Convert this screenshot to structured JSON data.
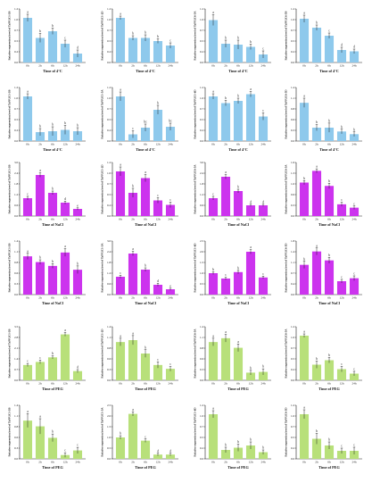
{
  "chart_data": [
    {
      "type": "bar",
      "row": 0,
      "col": 0,
      "color": "#8ec9ec",
      "ylabel": "Relative expression level of TaPP2C1-3B",
      "xlabel": "Time of 4°C",
      "categories": [
        "0h",
        "2h",
        "6h",
        "12h",
        "24h"
      ],
      "values": [
        1.0,
        0.55,
        0.7,
        0.42,
        0.2
      ],
      "errors": [
        0.08,
        0.1,
        0.07,
        0.08,
        0.08
      ],
      "letters": [
        "a",
        "b",
        "b",
        "c",
        "d"
      ]
    },
    {
      "type": "bar",
      "row": 0,
      "col": 1,
      "color": "#8ec9ec",
      "ylabel": "Relative expression level of TaPP2C1-2D",
      "xlabel": "Time of 4°C",
      "categories": [
        "0h",
        "2h",
        "6h",
        "12h",
        "24h"
      ],
      "values": [
        1.0,
        0.55,
        0.55,
        0.48,
        0.38
      ],
      "errors": [
        0.04,
        0.05,
        0.07,
        0.05,
        0.06
      ],
      "letters": [
        "a",
        "b",
        "b",
        "b",
        "c"
      ]
    },
    {
      "type": "bar",
      "row": 0,
      "col": 2,
      "color": "#8ec9ec",
      "ylabel": "Relative expression level of TaPP2C6-5A",
      "xlabel": "Time of 4°C",
      "categories": [
        "0h",
        "2h",
        "6h",
        "12h",
        "24h"
      ],
      "values": [
        0.95,
        0.42,
        0.4,
        0.35,
        0.18
      ],
      "errors": [
        0.12,
        0.08,
        0.1,
        0.06,
        0.08
      ],
      "letters": [
        "a",
        "b",
        "b",
        "b",
        "c"
      ]
    },
    {
      "type": "bar",
      "row": 0,
      "col": 3,
      "color": "#8ec9ec",
      "ylabel": "Relative expression level of TaPP2C6-5B",
      "xlabel": "Time of 4°C",
      "categories": [
        "0h",
        "2h",
        "6h",
        "12h",
        "24h"
      ],
      "values": [
        0.98,
        0.78,
        0.6,
        0.28,
        0.25
      ],
      "errors": [
        0.08,
        0.06,
        0.06,
        0.06,
        0.05
      ],
      "letters": [
        "a",
        "b",
        "c",
        "d",
        "d"
      ]
    },
    {
      "type": "bar",
      "row": 1,
      "col": 0,
      "color": "#8ec9ec",
      "ylabel": "Relative expression level of TaPP2C1-3B",
      "xlabel": "Time of 4°C",
      "categories": [
        "0h",
        "2h",
        "6h",
        "12h",
        "24h"
      ],
      "values": [
        1.0,
        0.2,
        0.22,
        0.25,
        0.22
      ],
      "errors": [
        0.06,
        0.08,
        0.1,
        0.1,
        0.08
      ],
      "letters": [
        "a",
        "b",
        "b",
        "b",
        "b"
      ]
    },
    {
      "type": "bar",
      "row": 1,
      "col": 1,
      "color": "#8ec9ec",
      "ylabel": "Relative expression level of TaPP2C1-5A",
      "xlabel": "Time of 4°C",
      "categories": [
        "0h",
        "2h",
        "6h",
        "12h",
        "24h"
      ],
      "values": [
        1.0,
        0.15,
        0.3,
        0.7,
        0.32
      ],
      "errors": [
        0.1,
        0.08,
        0.08,
        0.1,
        0.08
      ],
      "letters": [
        "a",
        "c",
        "bc",
        "b",
        "bc"
      ]
    },
    {
      "type": "bar",
      "row": 1,
      "col": 2,
      "color": "#8ec9ec",
      "ylabel": "Relative expression level of TaPP2C1-6D",
      "xlabel": "Time of 4°C",
      "categories": [
        "0h",
        "2h",
        "6h",
        "12h",
        "24h"
      ],
      "values": [
        1.0,
        0.85,
        0.9,
        1.05,
        0.55
      ],
      "errors": [
        0.06,
        0.06,
        0.06,
        0.06,
        0.08
      ],
      "letters": [
        "a",
        "b",
        "b",
        "a",
        "c"
      ]
    },
    {
      "type": "bar",
      "row": 1,
      "col": 3,
      "color": "#8ec9ec",
      "ylabel": "Relative expression level of TaPP2C6-5D",
      "xlabel": "Time of 4°C",
      "categories": [
        "0h",
        "2h",
        "6h",
        "12h",
        "24h"
      ],
      "values": [
        1.0,
        0.35,
        0.35,
        0.25,
        0.18
      ],
      "errors": [
        0.12,
        0.08,
        0.12,
        0.06,
        0.06
      ],
      "letters": [
        "a",
        "b",
        "b",
        "b",
        "b"
      ]
    },
    {
      "type": "bar",
      "row": 2,
      "col": 0,
      "color": "#cc33ee",
      "ylabel": "Relative expression level of TaPP2C1-3B",
      "xlabel": "Time of NaCl",
      "categories": [
        "0h",
        "2h",
        "6h",
        "12h",
        "24h"
      ],
      "values": [
        1.0,
        2.3,
        1.3,
        0.75,
        0.4
      ],
      "errors": [
        0.1,
        0.12,
        0.1,
        0.08,
        0.06
      ],
      "letters": [
        "c",
        "a",
        "b",
        "d",
        "e"
      ]
    },
    {
      "type": "bar",
      "row": 2,
      "col": 1,
      "color": "#cc33ee",
      "ylabel": "Relative expression level of TaPP2C1-2D",
      "xlabel": "Time of NaCl",
      "categories": [
        "0h",
        "2h",
        "6h",
        "12h",
        "24h"
      ],
      "values": [
        1.0,
        0.52,
        0.85,
        0.35,
        0.25
      ],
      "errors": [
        0.1,
        0.1,
        0.08,
        0.06,
        0.06
      ],
      "letters": [
        "a",
        "b",
        "a",
        "c",
        "c"
      ]
    },
    {
      "type": "bar",
      "row": 2,
      "col": 2,
      "color": "#cc33ee",
      "ylabel": "Relative expression level of TaPP2C6-5A",
      "xlabel": "Time of NaCl",
      "categories": [
        "0h",
        "2h",
        "6h",
        "12h",
        "24h"
      ],
      "values": [
        1.0,
        2.2,
        1.4,
        0.6,
        0.6
      ],
      "errors": [
        0.1,
        0.12,
        0.1,
        0.06,
        0.06
      ],
      "letters": [
        "c",
        "a",
        "b",
        "d",
        "d"
      ]
    },
    {
      "type": "bar",
      "row": 2,
      "col": 3,
      "color": "#cc33ee",
      "ylabel": "Relative expression level of TaPP2C6-5A",
      "xlabel": "Time of NaCl",
      "categories": [
        "0h",
        "2h",
        "6h",
        "12h",
        "24h"
      ],
      "values": [
        1.0,
        1.35,
        0.9,
        0.35,
        0.25
      ],
      "errors": [
        0.06,
        0.06,
        0.08,
        0.06,
        0.05
      ],
      "letters": [
        "b",
        "a",
        "b",
        "c",
        "c"
      ]
    },
    {
      "type": "bar",
      "row": 3,
      "col": 0,
      "color": "#cc33ee",
      "ylabel": "Relative expression level of TaPP2C1-3B",
      "xlabel": "Time of NaCl",
      "categories": [
        "0h",
        "2h",
        "6h",
        "12h",
        "24h"
      ],
      "values": [
        1.0,
        0.85,
        0.75,
        1.1,
        0.65
      ],
      "errors": [
        0.08,
        0.06,
        0.06,
        0.1,
        0.1
      ],
      "letters": [
        "a",
        "b",
        "b",
        "a",
        "b"
      ]
    },
    {
      "type": "bar",
      "row": 3,
      "col": 1,
      "color": "#cc33ee",
      "ylabel": "Relative expression level of TaPP2C1-5A",
      "xlabel": "Time of NaCl",
      "categories": [
        "0h",
        "2h",
        "6h",
        "12h",
        "24h"
      ],
      "values": [
        1.0,
        2.3,
        1.4,
        0.55,
        0.3
      ],
      "errors": [
        0.08,
        0.12,
        0.1,
        0.08,
        0.06
      ],
      "letters": [
        "c",
        "a",
        "b",
        "d",
        "e"
      ]
    },
    {
      "type": "bar",
      "row": 3,
      "col": 2,
      "color": "#cc33ee",
      "ylabel": "Relative expression level of TaPP2C1-6D",
      "xlabel": "Time of NaCl",
      "categories": [
        "0h",
        "2h",
        "6h",
        "12h",
        "24h"
      ],
      "values": [
        1.0,
        0.75,
        1.05,
        2.0,
        0.8
      ],
      "errors": [
        0.06,
        0.06,
        0.08,
        0.1,
        0.06
      ],
      "letters": [
        "b",
        "c",
        "b",
        "a",
        "c"
      ]
    },
    {
      "type": "bar",
      "row": 3,
      "col": 3,
      "color": "#cc33ee",
      "ylabel": "Relative expression level of TaPP2C6-5D",
      "xlabel": "Time of NaCl",
      "categories": [
        "0h",
        "2h",
        "6h",
        "12h",
        "24h"
      ],
      "values": [
        1.0,
        1.45,
        1.15,
        0.45,
        0.55
      ],
      "errors": [
        0.12,
        0.12,
        0.1,
        0.06,
        0.08
      ],
      "letters": [
        "b",
        "a",
        "b",
        "c",
        "c"
      ]
    },
    {
      "type": "bar",
      "row": 4,
      "col": 0,
      "color": "#b8e07a",
      "ylabel": "Relative expression level of TaPP2C1-3B",
      "xlabel": "Time of PEG",
      "categories": [
        "0h",
        "2h",
        "6h",
        "12h",
        "24h"
      ],
      "values": [
        1.0,
        1.2,
        1.5,
        3.0,
        0.6
      ],
      "errors": [
        0.1,
        0.12,
        0.1,
        0.12,
        0.1
      ],
      "letters": [
        "c",
        "c",
        "b",
        "a",
        "d"
      ]
    },
    {
      "type": "bar",
      "row": 4,
      "col": 1,
      "color": "#b8e07a",
      "ylabel": "Relative expression level of TaPP2C1-2D",
      "xlabel": "Time of PEG",
      "categories": [
        "0h",
        "2h",
        "6h",
        "12h",
        "24h"
      ],
      "values": [
        1.0,
        1.05,
        0.7,
        0.4,
        0.3
      ],
      "errors": [
        0.1,
        0.12,
        0.1,
        0.08,
        0.06
      ],
      "letters": [
        "a",
        "a",
        "b",
        "c",
        "c"
      ]
    },
    {
      "type": "bar",
      "row": 4,
      "col": 2,
      "color": "#b8e07a",
      "ylabel": "Relative expression level of TaPP2C6-5A",
      "xlabel": "Time of PEG",
      "categories": [
        "0h",
        "2h",
        "6h",
        "12h",
        "24h"
      ],
      "values": [
        1.0,
        1.1,
        0.85,
        0.2,
        0.22
      ],
      "errors": [
        0.1,
        0.1,
        0.1,
        0.06,
        0.08
      ],
      "letters": [
        "a",
        "a",
        "a",
        "b",
        "b"
      ]
    },
    {
      "type": "bar",
      "row": 4,
      "col": 3,
      "color": "#b8e07a",
      "ylabel": "Relative expression level of TaPP2C6-5A",
      "xlabel": "Time of PEG",
      "categories": [
        "0h",
        "2h",
        "6h",
        "12h",
        "24h"
      ],
      "values": [
        1.0,
        0.35,
        0.45,
        0.25,
        0.15
      ],
      "errors": [
        0.04,
        0.08,
        0.06,
        0.06,
        0.05
      ],
      "letters": [
        "a",
        "b",
        "b",
        "c",
        "c"
      ]
    },
    {
      "type": "bar",
      "row": 5,
      "col": 0,
      "color": "#b8e07a",
      "ylabel": "Relative expression level of TaPP2C1-3B",
      "xlabel": "Time of PEG",
      "categories": [
        "0h",
        "2h",
        "6h",
        "12h",
        "24h"
      ],
      "values": [
        1.0,
        0.85,
        0.55,
        0.1,
        0.22
      ],
      "errors": [
        0.18,
        0.2,
        0.1,
        0.06,
        0.08
      ],
      "letters": [
        "a",
        "a",
        "b",
        "c",
        "c"
      ]
    },
    {
      "type": "bar",
      "row": 5,
      "col": 1,
      "color": "#b8e07a",
      "ylabel": "Relative expression level of TaPP2C1-5A",
      "xlabel": "Time of PEG",
      "categories": [
        "0h",
        "2h",
        "6h",
        "12h",
        "24h"
      ],
      "values": [
        1.0,
        2.1,
        0.85,
        0.2,
        0.2
      ],
      "errors": [
        0.08,
        0.1,
        0.08,
        0.06,
        0.06
      ],
      "letters": [
        "b",
        "a",
        "c",
        "d",
        "d"
      ]
    },
    {
      "type": "bar",
      "row": 5,
      "col": 2,
      "color": "#b8e07a",
      "ylabel": "Relative expression level of TaPP2C1-6D",
      "xlabel": "Time of PEG",
      "categories": [
        "0h",
        "2h",
        "6h",
        "12h",
        "24h"
      ],
      "values": [
        1.0,
        0.2,
        0.25,
        0.3,
        0.15
      ],
      "errors": [
        0.08,
        0.06,
        0.08,
        0.08,
        0.05
      ],
      "letters": [
        "a",
        "b",
        "b",
        "b",
        "b"
      ]
    },
    {
      "type": "bar",
      "row": 5,
      "col": 3,
      "color": "#b8e07a",
      "ylabel": "Relative expression level of TaPP2C6-5D",
      "xlabel": "Time of PEG",
      "categories": [
        "0h",
        "2h",
        "6h",
        "12h",
        "24h"
      ],
      "values": [
        1.0,
        0.45,
        0.3,
        0.18,
        0.18
      ],
      "errors": [
        0.1,
        0.12,
        0.08,
        0.06,
        0.08
      ],
      "letters": [
        "a",
        "b",
        "b",
        "c",
        "c"
      ]
    }
  ]
}
